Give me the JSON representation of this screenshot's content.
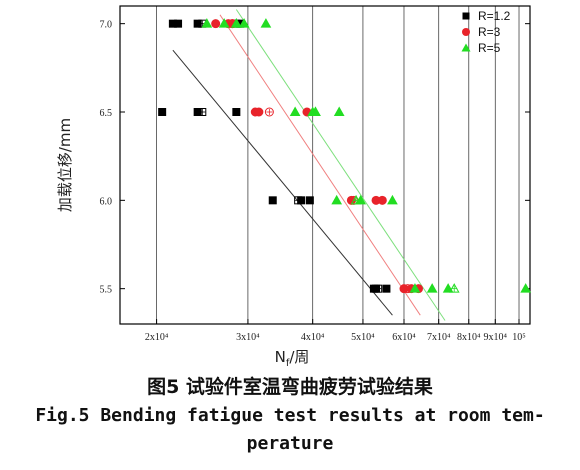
{
  "chart_data": {
    "type": "scatter",
    "xscale": "log",
    "xlim": [
      17000,
      105000
    ],
    "ylim": [
      5.3,
      7.1
    ],
    "xlabel": "N_f/周",
    "xlabel_main": "N",
    "xlabel_sub": "f",
    "xlabel_unit": "/周",
    "ylabel": "加载位移/mm",
    "x_ticks": [
      {
        "value": 20000,
        "label": "2x10⁴"
      },
      {
        "value": 30000,
        "label": "3x10⁴"
      },
      {
        "value": 40000,
        "label": "4x10⁴"
      },
      {
        "value": 50000,
        "label": "5x10⁴"
      },
      {
        "value": 60000,
        "label": "6x10⁴"
      },
      {
        "value": 70000,
        "label": "7x10⁴"
      },
      {
        "value": 80000,
        "label": "8x10⁴"
      },
      {
        "value": 90000,
        "label": "9x10⁴"
      },
      {
        "value": 100000,
        "label": "10⁵"
      }
    ],
    "y_ticks": [
      {
        "value": 5.5,
        "label": "5.5"
      },
      {
        "value": 6.0,
        "label": "6.0"
      },
      {
        "value": 6.5,
        "label": "6.5"
      },
      {
        "value": 7.0,
        "label": "7.0"
      }
    ],
    "legend_position": "top-right",
    "series": [
      {
        "name": "R=1.2",
        "color": "#000000",
        "marker": "square",
        "points": [
          {
            "x": 21500,
            "y": 7.0
          },
          {
            "x": 22000,
            "y": 7.0
          },
          {
            "x": 24000,
            "y": 7.0
          },
          {
            "x": 28500,
            "y": 7.0
          },
          {
            "x": 29000,
            "y": 7.0
          },
          {
            "x": 20500,
            "y": 6.5
          },
          {
            "x": 24000,
            "y": 6.5
          },
          {
            "x": 28500,
            "y": 6.5
          },
          {
            "x": 33500,
            "y": 6.0
          },
          {
            "x": 38000,
            "y": 6.0
          },
          {
            "x": 39500,
            "y": 6.0
          },
          {
            "x": 52500,
            "y": 5.5
          },
          {
            "x": 53000,
            "y": 5.5
          },
          {
            "x": 55500,
            "y": 5.5
          }
        ],
        "mean_points": [
          {
            "x": 24500,
            "y": 7.0
          },
          {
            "x": 24500,
            "y": 6.5
          },
          {
            "x": 37500,
            "y": 6.0
          },
          {
            "x": 53500,
            "y": 5.5
          }
        ],
        "fit_line": [
          {
            "x": 21500,
            "y": 6.85
          },
          {
            "x": 57000,
            "y": 5.35
          }
        ]
      },
      {
        "name": "R=3",
        "color": "#e8232a",
        "marker": "circle",
        "points": [
          {
            "x": 26000,
            "y": 7.0
          },
          {
            "x": 27500,
            "y": 7.0
          },
          {
            "x": 28000,
            "y": 7.0
          },
          {
            "x": 31000,
            "y": 6.5
          },
          {
            "x": 31500,
            "y": 6.5
          },
          {
            "x": 39000,
            "y": 6.5
          },
          {
            "x": 47500,
            "y": 6.0
          },
          {
            "x": 53000,
            "y": 6.0
          },
          {
            "x": 54500,
            "y": 6.0
          },
          {
            "x": 60000,
            "y": 5.5
          },
          {
            "x": 62000,
            "y": 5.5
          },
          {
            "x": 64000,
            "y": 5.5
          }
        ],
        "mean_points": [
          {
            "x": 28000,
            "y": 7.0
          },
          {
            "x": 33000,
            "y": 6.5
          },
          {
            "x": 48000,
            "y": 6.0
          },
          {
            "x": 61000,
            "y": 5.5
          }
        ],
        "fit_line": [
          {
            "x": 26500,
            "y": 7.05
          },
          {
            "x": 64500,
            "y": 5.35
          }
        ]
      },
      {
        "name": "R=5",
        "color": "#22dd22",
        "marker": "triangle",
        "points": [
          {
            "x": 25000,
            "y": 7.0
          },
          {
            "x": 27000,
            "y": 7.0
          },
          {
            "x": 28500,
            "y": 7.0
          },
          {
            "x": 29500,
            "y": 7.0
          },
          {
            "x": 32500,
            "y": 7.0
          },
          {
            "x": 37000,
            "y": 6.5
          },
          {
            "x": 40000,
            "y": 6.5
          },
          {
            "x": 40500,
            "y": 6.5
          },
          {
            "x": 45000,
            "y": 6.5
          },
          {
            "x": 44500,
            "y": 6.0
          },
          {
            "x": 49500,
            "y": 6.0
          },
          {
            "x": 57000,
            "y": 6.0
          },
          {
            "x": 63000,
            "y": 5.5
          },
          {
            "x": 68000,
            "y": 5.5
          },
          {
            "x": 73000,
            "y": 5.5
          },
          {
            "x": 103000,
            "y": 5.5
          }
        ],
        "mean_points": [
          {
            "x": 28500,
            "y": 7.0
          },
          {
            "x": 40500,
            "y": 6.5
          },
          {
            "x": 48500,
            "y": 6.0
          },
          {
            "x": 75000,
            "y": 5.5
          }
        ],
        "fit_line": [
          {
            "x": 28500,
            "y": 7.08
          },
          {
            "x": 72000,
            "y": 5.32
          }
        ]
      }
    ]
  },
  "caption": {
    "chinese": "图5 试验件室温弯曲疲劳试验结果",
    "english_line1": "Fig.5 Bending fatigue test results at room tem-",
    "english_line2": "perature"
  }
}
